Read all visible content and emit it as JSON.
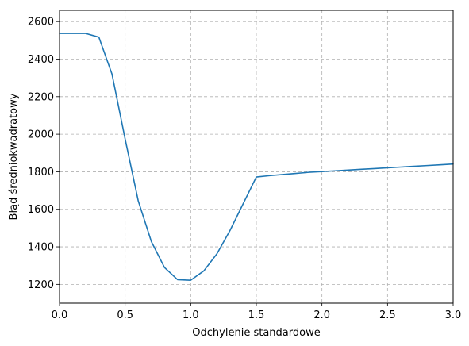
{
  "chart_data": {
    "type": "line",
    "title": "",
    "xlabel": "Odchylenie standardowe",
    "ylabel": "Błąd średniokwadratowy",
    "xlim": [
      0.0,
      3.0
    ],
    "ylim": [
      1100,
      2660
    ],
    "x_ticks": [
      0.0,
      0.5,
      1.0,
      1.5,
      2.0,
      2.5,
      3.0
    ],
    "x_tick_labels": [
      "0.0",
      "0.5",
      "1.0",
      "1.5",
      "2.0",
      "2.5",
      "3.0"
    ],
    "y_ticks": [
      1200,
      1400,
      1600,
      1800,
      2000,
      2200,
      2400,
      2600
    ],
    "y_tick_labels": [
      "1200",
      "1400",
      "1600",
      "1800",
      "2000",
      "2200",
      "2400",
      "2600"
    ],
    "grid": true,
    "series": [
      {
        "color": "#1f77b4",
        "x": [
          0.0,
          0.1,
          0.2,
          0.3,
          0.4,
          0.5,
          0.6,
          0.7,
          0.8,
          0.9,
          1.0,
          1.1,
          1.2,
          1.3,
          1.4,
          1.5,
          1.6,
          1.7,
          1.8,
          1.9,
          2.0,
          2.1,
          2.2,
          2.3,
          2.4,
          2.5,
          2.6,
          2.7,
          2.8,
          2.9,
          3.0
        ],
        "y": [
          2537,
          2537,
          2537,
          2517,
          2320,
          1975,
          1645,
          1428,
          1290,
          1225,
          1222,
          1272,
          1363,
          1488,
          1630,
          1772,
          1779,
          1785,
          1791,
          1797,
          1801,
          1805,
          1809,
          1813,
          1817,
          1821,
          1825,
          1829,
          1833,
          1837,
          1841
        ]
      }
    ]
  }
}
